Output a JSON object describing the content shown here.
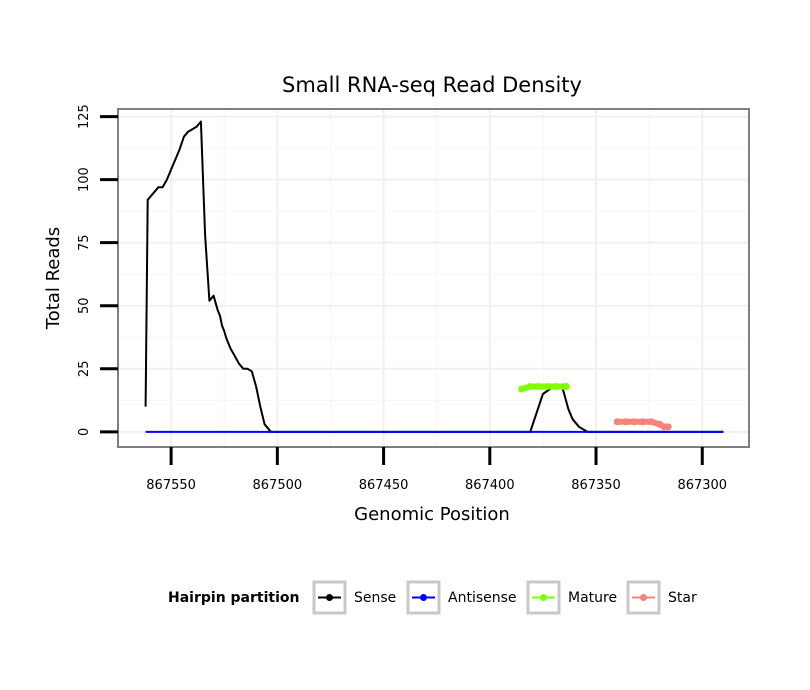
{
  "chart_data": {
    "type": "line",
    "title": "Small RNA-seq Read Density",
    "xlabel": "Genomic Position",
    "ylabel": "Total Reads",
    "x_reversed": true,
    "xlim": [
      867575,
      867278
    ],
    "ylim": [
      -6,
      128
    ],
    "x_ticks": [
      867550,
      867500,
      867450,
      867400,
      867350,
      867300
    ],
    "x_tick_labels": [
      "867550",
      "867500",
      "867450",
      "867400",
      "867350",
      "867300"
    ],
    "y_ticks": [
      0,
      25,
      50,
      75,
      100,
      125
    ],
    "y_tick_labels": [
      "0",
      "25",
      "50",
      "75",
      "100",
      "125"
    ],
    "grid": true,
    "legend": {
      "title": "Hairpin partition",
      "position": "bottom",
      "entries": [
        "Sense",
        "Antisense",
        "Mature",
        "Star"
      ]
    },
    "series": [
      {
        "name": "Sense",
        "color": "#000000",
        "style": "line",
        "x": [
          867562,
          867561,
          867559,
          867556,
          867554,
          867552,
          867550,
          867548,
          867546,
          867544,
          867542,
          867540,
          867538,
          867536,
          867534,
          867532,
          867531,
          867530,
          867529,
          867528,
          867527,
          867526,
          867525,
          867524,
          867522,
          867520,
          867518,
          867516,
          867514,
          867512,
          867510,
          867508,
          867506,
          867504,
          867503,
          867502,
          867501,
          867500,
          867499,
          867497,
          867490,
          867470,
          867450,
          867430,
          867410,
          867390,
          867385,
          867384,
          867383,
          867381,
          867375,
          867370,
          867368,
          867366,
          867365,
          867364,
          867363,
          867361,
          867358,
          867354,
          867350,
          867340,
          867320,
          867300,
          867290
        ],
        "y": [
          10,
          92,
          94,
          97,
          97,
          100,
          104,
          108,
          112,
          117,
          119,
          120,
          121,
          123,
          78,
          52,
          53,
          54,
          51,
          48,
          46,
          42,
          40,
          37,
          33,
          30,
          27,
          25,
          25,
          24,
          18,
          10,
          3,
          1,
          0,
          0,
          0,
          0,
          0,
          0,
          0,
          0,
          0,
          0,
          0,
          0,
          0,
          0,
          0,
          0,
          15,
          18,
          18,
          18,
          15,
          12,
          9,
          5,
          2,
          0,
          0,
          0,
          0,
          0,
          0
        ]
      },
      {
        "name": "Antisense",
        "color": "#0000ff",
        "style": "line",
        "x": [
          867562,
          867500,
          867450,
          867400,
          867350,
          867300,
          867290
        ],
        "y": [
          0,
          0,
          0,
          0,
          0,
          0,
          0
        ]
      },
      {
        "name": "Mature",
        "color": "#7fff00",
        "style": "points",
        "x": [
          867385,
          867381,
          867377,
          867373,
          867369,
          867365,
          867364
        ],
        "y": [
          17,
          18,
          18,
          18,
          18,
          18,
          18
        ]
      },
      {
        "name": "Star",
        "color": "#f4837b",
        "style": "points",
        "x": [
          867340,
          867336,
          867332,
          867328,
          867324,
          867320,
          867318,
          867316
        ],
        "y": [
          4,
          4,
          4,
          4,
          4,
          3,
          2,
          2
        ]
      }
    ]
  }
}
